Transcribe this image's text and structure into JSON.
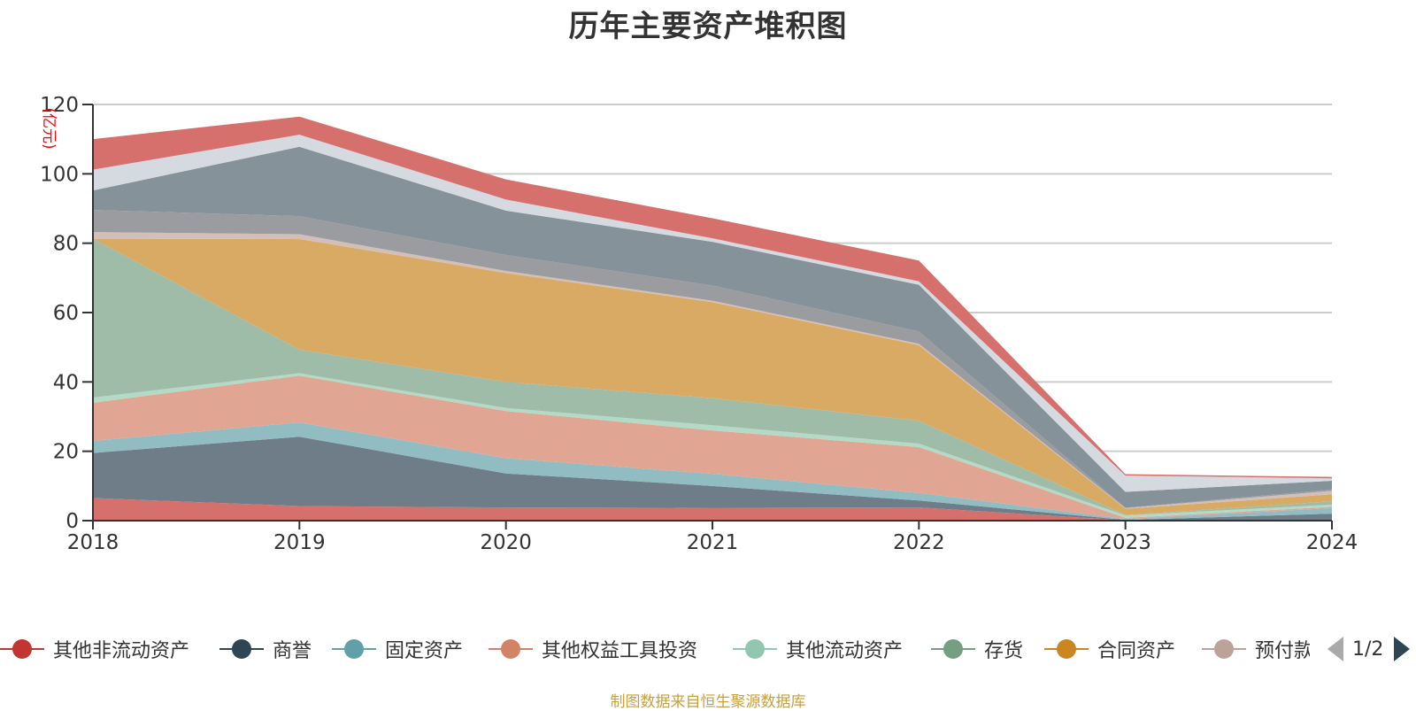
{
  "chart_data": {
    "type": "area",
    "stacked": true,
    "title": "历年主要资产堆积图",
    "ylabel": "(亿元)",
    "xlabel": "",
    "categories": [
      "2018",
      "2019",
      "2020",
      "2021",
      "2022",
      "2023",
      "2024"
    ],
    "ylim": [
      0,
      120
    ],
    "yticks": [
      0,
      20,
      40,
      60,
      80,
      100,
      120
    ],
    "grid": true,
    "legend_position": "bottom",
    "series": [
      {
        "name": "其他非流动资产",
        "color": "#c23531",
        "fill": "#d6706c",
        "values": [
          6.5,
          4.2,
          3.8,
          3.7,
          3.8,
          0.1,
          0.1
        ]
      },
      {
        "name": "商誉",
        "color": "#2f4554",
        "fill": "#6e7d88",
        "values": [
          13.0,
          20.0,
          9.8,
          6.3,
          2.0,
          0.1,
          1.9
        ]
      },
      {
        "name": "固定资产",
        "color": "#61a0a8",
        "fill": "#90bcc2",
        "values": [
          3.5,
          4.1,
          4.4,
          3.5,
          2.2,
          0.3,
          1.6
        ]
      },
      {
        "name": "其他权益工具投资",
        "color": "#d48265",
        "fill": "#e1a693",
        "values": [
          11.0,
          13.5,
          13.6,
          12.5,
          13.2,
          0.3,
          0.4
        ]
      },
      {
        "name": "其他流动资产",
        "color": "#91c7ae",
        "fill": "#b2dac6",
        "values": [
          1.5,
          0.7,
          0.9,
          1.5,
          1.0,
          0.7,
          0.6
        ]
      },
      {
        "name": "存货",
        "color": "#749f83",
        "fill": "#9fbca8",
        "values": [
          45.8,
          6.8,
          7.5,
          7.8,
          6.6,
          0.1,
          1.0
        ]
      },
      {
        "name": "合同资产",
        "color": "#ca8622",
        "fill": "#d9aa64",
        "values": [
          0.0,
          31.9,
          31.4,
          27.7,
          21.8,
          1.8,
          2.0
        ]
      },
      {
        "name": "预付款项",
        "color": "#bda29a",
        "fill": "#d3bfb9",
        "values": [
          1.9,
          1.4,
          0.6,
          0.4,
          0.4,
          0.2,
          1.0
        ]
      },
      {
        "name": "",
        "color": "#6e7074",
        "fill": "#9b9ca0",
        "values": [
          6.4,
          5.2,
          4.6,
          4.4,
          3.5,
          0.1,
          0.4
        ]
      },
      {
        "name": "",
        "color": "#546570",
        "fill": "#86929a",
        "values": [
          5.6,
          20.0,
          12.8,
          12.6,
          13.5,
          4.6,
          2.5
        ]
      },
      {
        "name": "",
        "color": "#c4ccd3",
        "fill": "#d5dae1",
        "values": [
          6.0,
          3.5,
          3.2,
          1.0,
          1.0,
          4.7,
          0.7
        ]
      },
      {
        "name": "",
        "color": "#c23531",
        "fill": "#d6706c",
        "values": [
          8.8,
          5.2,
          5.8,
          5.8,
          6.0,
          0.4,
          0.4
        ]
      }
    ]
  },
  "legend": {
    "items": [
      {
        "label": "其他非流动资产",
        "color": "#c23531"
      },
      {
        "label": "商誉",
        "color": "#2f4554"
      },
      {
        "label": "固定资产",
        "color": "#61a0a8"
      },
      {
        "label": "其他权益工具投资",
        "color": "#d48265"
      },
      {
        "label": "其他流动资产",
        "color": "#91c7ae"
      },
      {
        "label": "存货",
        "color": "#749f83"
      },
      {
        "label": "合同资产",
        "color": "#ca8622"
      },
      {
        "label": "预付款项",
        "color": "#bda29a"
      }
    ],
    "page_indicator": "1/2"
  },
  "footer": {
    "source": "制图数据来自恒生聚源数据库"
  },
  "colors": {
    "axis": "#333333",
    "grid": "#cccccc",
    "unit_label": "#ff0000",
    "source_text": "#c8a03c"
  }
}
